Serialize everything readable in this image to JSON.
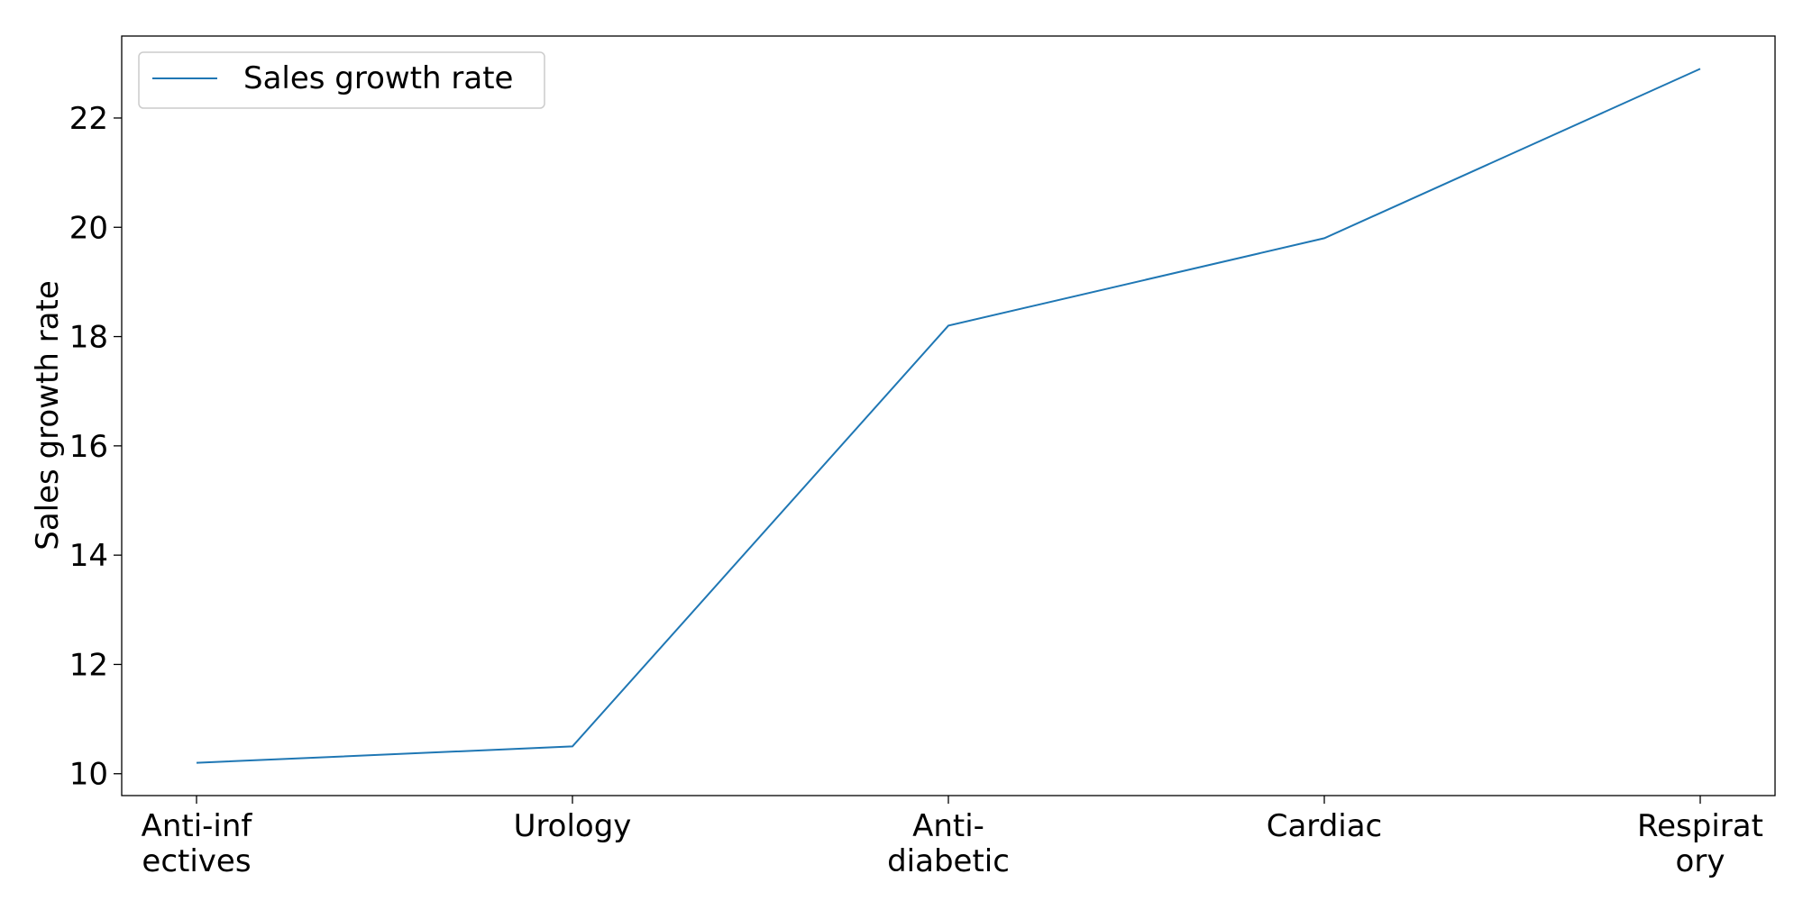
{
  "chart_data": {
    "type": "line",
    "categories": [
      "Anti-infectives",
      "Urology",
      "Anti-diabetic",
      "Cardiac",
      "Respiratory"
    ],
    "category_tick_lines": [
      [
        "Anti-inf",
        "ectives"
      ],
      [
        "Urology"
      ],
      [
        "Anti-",
        "diabetic"
      ],
      [
        "Cardiac"
      ],
      [
        "Respirat",
        "ory"
      ]
    ],
    "series": [
      {
        "name": "Sales growth rate",
        "values": [
          10.2,
          10.5,
          18.2,
          19.8,
          22.9
        ],
        "color": "#1f77b4"
      }
    ],
    "title": "",
    "xlabel": "",
    "ylabel": "Sales growth rate",
    "ylim": [
      9.6,
      23.5
    ],
    "yticks": [
      10,
      12,
      14,
      16,
      18,
      20,
      22
    ],
    "grid": false,
    "legend": {
      "position": "top-left",
      "entries": [
        "Sales growth rate"
      ]
    }
  }
}
